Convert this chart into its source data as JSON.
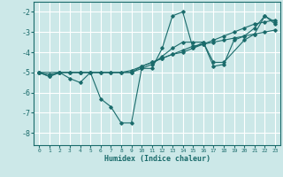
{
  "title": "",
  "xlabel": "Humidex (Indice chaleur)",
  "bg_color": "#cce8e8",
  "line_color": "#1a6b6b",
  "grid_color": "#ffffff",
  "xlim": [
    -0.5,
    23.5
  ],
  "ylim": [
    -8.6,
    -1.5
  ],
  "yticks": [
    -8,
    -7,
    -6,
    -5,
    -4,
    -3,
    -2
  ],
  "xticks": [
    0,
    1,
    2,
    3,
    4,
    5,
    6,
    7,
    8,
    9,
    10,
    11,
    12,
    13,
    14,
    15,
    16,
    17,
    18,
    19,
    20,
    21,
    22,
    23
  ],
  "lines": [
    {
      "x": [
        0,
        1,
        2,
        3,
        4,
        5,
        6,
        7,
        8,
        9,
        10,
        11,
        12,
        13,
        14,
        15,
        16,
        17,
        18,
        19,
        20,
        21,
        22,
        23
      ],
      "y": [
        -5.0,
        -5.2,
        -5.0,
        -5.3,
        -5.5,
        -5.0,
        -6.3,
        -6.7,
        -7.5,
        -7.5,
        -4.8,
        -4.8,
        -3.8,
        -2.2,
        -2.0,
        -3.8,
        -3.5,
        -4.7,
        -4.6,
        -3.4,
        -3.2,
        -2.8,
        -2.2,
        -2.5
      ]
    },
    {
      "x": [
        0,
        1,
        2,
        3,
        4,
        5,
        6,
        7,
        8,
        9,
        10,
        11,
        12,
        13,
        14,
        15,
        16,
        17,
        18,
        19,
        20,
        21,
        22,
        23
      ],
      "y": [
        -5.0,
        -5.1,
        -5.0,
        -5.0,
        -5.0,
        -5.0,
        -5.0,
        -5.0,
        -5.0,
        -4.9,
        -4.7,
        -4.5,
        -4.3,
        -4.1,
        -4.0,
        -3.8,
        -3.6,
        -3.4,
        -3.2,
        -3.0,
        -2.8,
        -2.6,
        -2.5,
        -2.4
      ]
    },
    {
      "x": [
        0,
        1,
        2,
        3,
        4,
        5,
        6,
        7,
        8,
        9,
        10,
        11,
        12,
        13,
        14,
        15,
        16,
        17,
        18,
        19,
        20,
        21,
        22,
        23
      ],
      "y": [
        -5.0,
        -5.2,
        -5.0,
        -5.0,
        -5.0,
        -5.0,
        -5.0,
        -5.0,
        -5.0,
        -5.0,
        -4.7,
        -4.5,
        -4.3,
        -4.1,
        -3.9,
        -3.7,
        -3.6,
        -3.5,
        -3.4,
        -3.3,
        -3.2,
        -3.1,
        -3.0,
        -2.9
      ]
    },
    {
      "x": [
        0,
        2,
        4,
        9,
        10,
        11,
        12,
        13,
        14,
        15,
        16,
        17,
        18,
        20,
        21,
        22,
        23
      ],
      "y": [
        -5.0,
        -5.0,
        -5.0,
        -5.0,
        -4.8,
        -4.6,
        -4.2,
        -3.8,
        -3.5,
        -3.5,
        -3.5,
        -4.5,
        -4.5,
        -3.4,
        -3.1,
        -2.2,
        -2.6
      ]
    }
  ]
}
